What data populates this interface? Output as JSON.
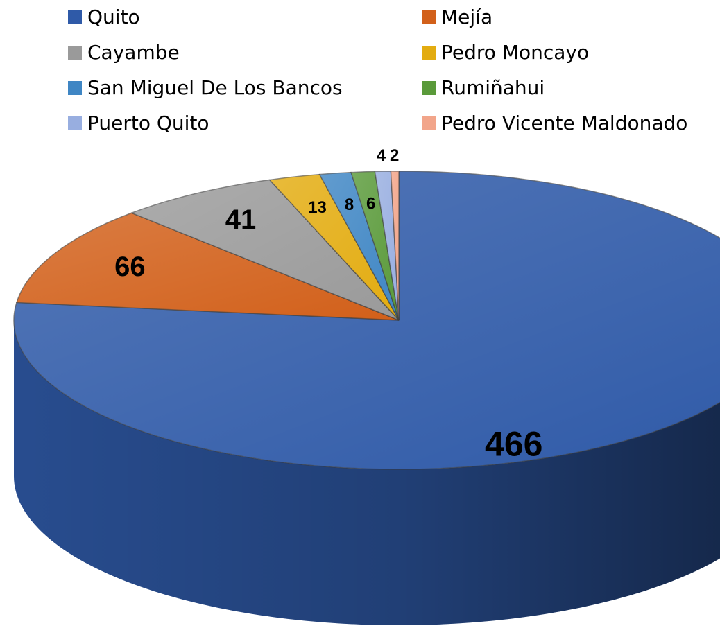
{
  "chart_data": {
    "type": "pie",
    "categories": [
      "Quito",
      "Mejía",
      "Cayambe",
      "Pedro Moncayo",
      "San Miguel De Los Bancos",
      "Rumiñahui",
      "Puerto Quito",
      "Pedro Vicente Maldonado"
    ],
    "values": [
      466,
      66,
      41,
      13,
      8,
      6,
      4,
      2
    ],
    "colors": [
      "#2f5aa8",
      "#d2601a",
      "#9a9a9a",
      "#e3ac10",
      "#3f86c4",
      "#5a9a3a",
      "#98aee0",
      "#f2a58a"
    ],
    "legend": "top"
  }
}
